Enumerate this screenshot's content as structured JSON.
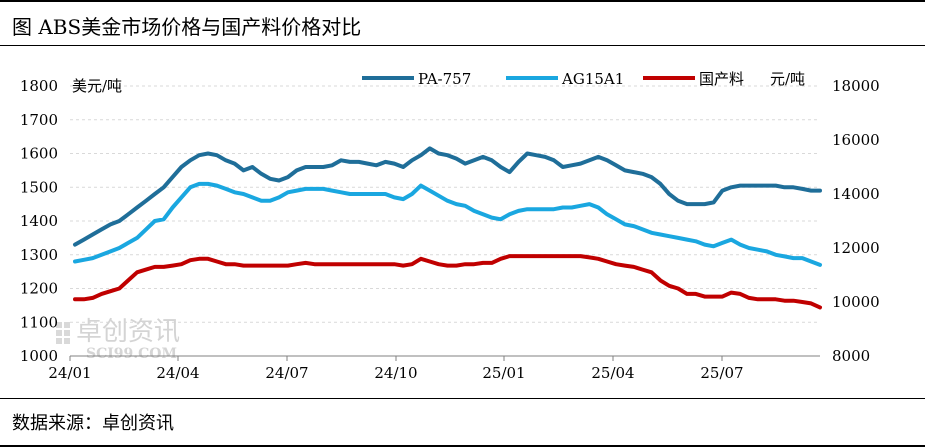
{
  "title": "图 ABS美金市场价格与国产料价格对比",
  "source": "数据来源：卓创资讯",
  "watermark": {
    "cn": "卓创资讯",
    "en": "SCI99.COM"
  },
  "chart_data": {
    "type": "line",
    "left_unit": "美元/吨",
    "right_unit": "元/吨",
    "left_ylim": [
      1000,
      1800
    ],
    "left_ticks": [
      "1800",
      "1700",
      "1600",
      "1500",
      "1400",
      "1300",
      "1200",
      "1100",
      "1000"
    ],
    "right_ylim": [
      8000,
      18000
    ],
    "right_ticks": [
      "18000",
      "16000",
      "14000",
      "12000",
      "10000",
      "8000"
    ],
    "x_ticks": [
      "24/01",
      "24/04",
      "24/07",
      "24/10",
      "25/01",
      "25/04",
      "25/07"
    ],
    "grid": true,
    "legend_position": "top",
    "series": [
      {
        "name": "PA-757",
        "axis": "left",
        "color": "#1f6e99",
        "values": [
          1330,
          1345,
          1360,
          1375,
          1390,
          1400,
          1420,
          1440,
          1460,
          1480,
          1500,
          1530,
          1560,
          1580,
          1595,
          1600,
          1595,
          1580,
          1570,
          1550,
          1560,
          1540,
          1525,
          1520,
          1530,
          1550,
          1560,
          1560,
          1560,
          1565,
          1580,
          1575,
          1575,
          1570,
          1565,
          1575,
          1570,
          1560,
          1580,
          1595,
          1615,
          1600,
          1595,
          1585,
          1570,
          1580,
          1590,
          1580,
          1560,
          1545,
          1575,
          1600,
          1595,
          1590,
          1580,
          1560,
          1565,
          1570,
          1580,
          1590,
          1580,
          1565,
          1550,
          1545,
          1540,
          1530,
          1510,
          1480,
          1460,
          1450,
          1450,
          1450,
          1455,
          1490,
          1500,
          1505,
          1505,
          1505,
          1505,
          1505,
          1500,
          1500,
          1495,
          1490,
          1490
        ]
      },
      {
        "name": "AG15A1",
        "axis": "left",
        "color": "#1aa7e0",
        "values": [
          1280,
          1285,
          1290,
          1300,
          1310,
          1320,
          1335,
          1350,
          1375,
          1400,
          1405,
          1440,
          1470,
          1500,
          1510,
          1510,
          1505,
          1495,
          1485,
          1480,
          1470,
          1460,
          1460,
          1470,
          1485,
          1490,
          1495,
          1495,
          1495,
          1490,
          1485,
          1480,
          1480,
          1480,
          1480,
          1480,
          1470,
          1465,
          1480,
          1505,
          1490,
          1475,
          1460,
          1450,
          1445,
          1430,
          1420,
          1410,
          1405,
          1420,
          1430,
          1435,
          1435,
          1435,
          1435,
          1440,
          1440,
          1445,
          1450,
          1440,
          1420,
          1405,
          1390,
          1385,
          1375,
          1365,
          1360,
          1355,
          1350,
          1345,
          1340,
          1330,
          1325,
          1335,
          1345,
          1330,
          1320,
          1315,
          1310,
          1300,
          1295,
          1290,
          1290,
          1280,
          1270
        ]
      },
      {
        "name": "国产料",
        "axis": "right",
        "color": "#c00000",
        "values": [
          10100,
          10100,
          10150,
          10300,
          10400,
          10500,
          10800,
          11100,
          11200,
          11300,
          11300,
          11350,
          11400,
          11550,
          11600,
          11600,
          11500,
          11400,
          11400,
          11350,
          11350,
          11350,
          11350,
          11350,
          11350,
          11400,
          11450,
          11400,
          11400,
          11400,
          11400,
          11400,
          11400,
          11400,
          11400,
          11400,
          11400,
          11350,
          11400,
          11600,
          11500,
          11400,
          11350,
          11350,
          11400,
          11400,
          11450,
          11450,
          11600,
          11700,
          11700,
          11700,
          11700,
          11700,
          11700,
          11700,
          11700,
          11700,
          11650,
          11600,
          11500,
          11400,
          11350,
          11300,
          11200,
          11100,
          10800,
          10600,
          10500,
          10300,
          10300,
          10200,
          10200,
          10200,
          10350,
          10300,
          10150,
          10100,
          10100,
          10100,
          10050,
          10050,
          10000,
          9950,
          9800
        ]
      }
    ]
  }
}
